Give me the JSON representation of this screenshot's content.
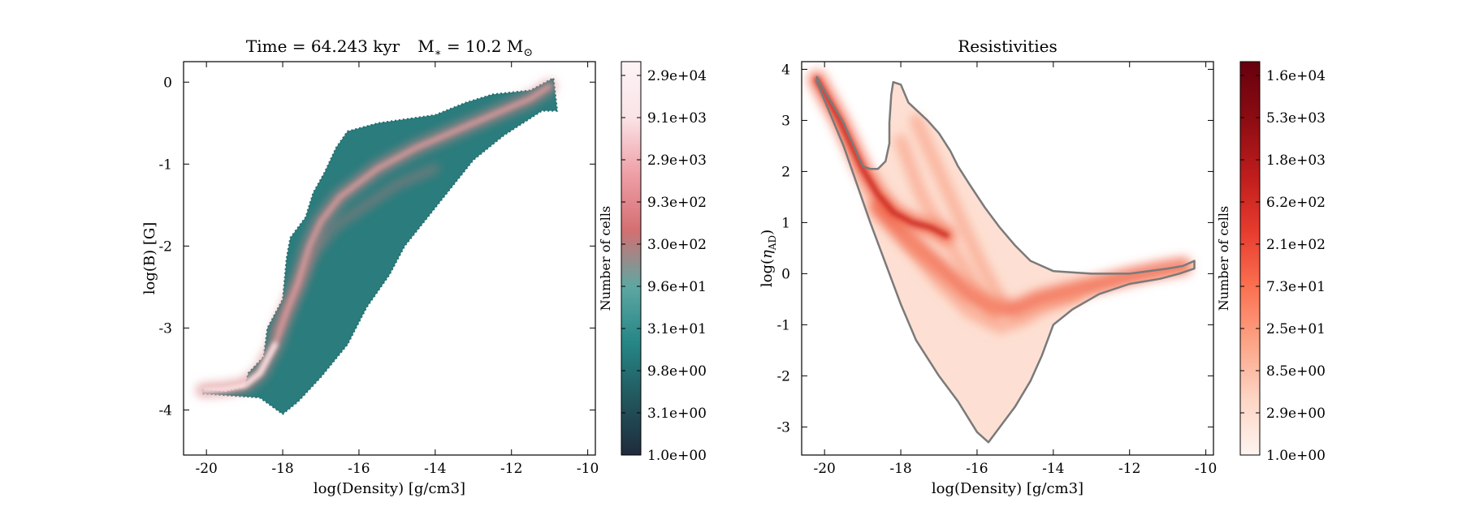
{
  "chart_data": [
    {
      "type": "heatmap",
      "title": "Time = 64.243 kyr    M$_*$ = 10.2 M$_\\odot$",
      "title_parts": {
        "time_label": "Time = 64.243 kyr",
        "mass_prefix": "M",
        "mass_sub": "∗",
        "mass_value": " = 10.2 M",
        "mass_unit_sub": "⊙"
      },
      "xlabel": "log(Density) [g/cm3]",
      "ylabel": "log(B) [G]",
      "xlim": [
        -20.6,
        -9.8
      ],
      "ylim": [
        -4.55,
        0.25
      ],
      "xticks": [
        -20,
        -18,
        -16,
        -14,
        -12,
        -10
      ],
      "yticks": [
        0,
        -1,
        -2,
        -3,
        -4
      ],
      "colormap": [
        "#1f2b3d",
        "#22575d",
        "#268686",
        "#5ea7a2",
        "#d46f72",
        "#ee9fa6",
        "#fae3e6",
        "#fdf4f6"
      ],
      "colorbar": {
        "label": "Number of cells",
        "ticks": [
          "2.9e+04",
          "9.1e+03",
          "2.9e+03",
          "9.3e+02",
          "3.0e+02",
          "9.6e+01",
          "3.1e+01",
          "9.8e+00",
          "3.1e+00",
          "1.0e+00"
        ],
        "scale": "log"
      },
      "outline_polygon": [
        [
          -20.1,
          -3.75
        ],
        [
          -19.5,
          -3.78
        ],
        [
          -19.0,
          -3.72
        ],
        [
          -18.9,
          -3.55
        ],
        [
          -18.5,
          -3.35
        ],
        [
          -18.4,
          -3.0
        ],
        [
          -18.0,
          -2.65
        ],
        [
          -17.9,
          -2.15
        ],
        [
          -17.8,
          -1.9
        ],
        [
          -17.4,
          -1.65
        ],
        [
          -17.2,
          -1.35
        ],
        [
          -16.9,
          -1.1
        ],
        [
          -16.6,
          -0.8
        ],
        [
          -16.3,
          -0.6
        ],
        [
          -15.5,
          -0.5
        ],
        [
          -14.0,
          -0.4
        ],
        [
          -13.2,
          -0.25
        ],
        [
          -12.5,
          -0.15
        ],
        [
          -11.5,
          -0.1
        ],
        [
          -10.9,
          0.05
        ],
        [
          -10.8,
          -0.35
        ],
        [
          -11.2,
          -0.35
        ],
        [
          -12.2,
          -0.65
        ],
        [
          -13.0,
          -0.95
        ],
        [
          -13.6,
          -1.3
        ],
        [
          -14.2,
          -1.65
        ],
        [
          -14.8,
          -2.0
        ],
        [
          -15.2,
          -2.35
        ],
        [
          -15.8,
          -2.75
        ],
        [
          -16.3,
          -3.2
        ],
        [
          -17.0,
          -3.6
        ],
        [
          -17.6,
          -3.9
        ],
        [
          -18.0,
          -4.05
        ],
        [
          -18.6,
          -3.85
        ],
        [
          -19.5,
          -3.82
        ],
        [
          -20.1,
          -3.8
        ]
      ],
      "ridge": [
        [
          -20.1,
          -3.76
        ],
        [
          -19.5,
          -3.74
        ],
        [
          -19.0,
          -3.7
        ],
        [
          -18.6,
          -3.55
        ],
        [
          -18.2,
          -3.2
        ],
        [
          -17.9,
          -2.8
        ],
        [
          -17.6,
          -2.45
        ],
        [
          -17.3,
          -2.0
        ],
        [
          -17.0,
          -1.7
        ],
        [
          -16.5,
          -1.4
        ],
        [
          -15.5,
          -1.05
        ],
        [
          -14.5,
          -0.8
        ],
        [
          -13.5,
          -0.6
        ],
        [
          -12.5,
          -0.4
        ],
        [
          -11.5,
          -0.2
        ],
        [
          -11.0,
          -0.05
        ]
      ],
      "secondary_ridge": [
        [
          -18.2,
          -3.05
        ],
        [
          -17.7,
          -2.6
        ],
        [
          -17.2,
          -2.1
        ],
        [
          -16.6,
          -1.75
        ],
        [
          -15.8,
          -1.5
        ],
        [
          -15.0,
          -1.25
        ],
        [
          -14.0,
          -1.05
        ]
      ]
    },
    {
      "type": "heatmap",
      "title": "Resistivities",
      "xlabel": "log(Density) [g/cm3]",
      "ylabel": "log(η$_{AD}$)",
      "ylabel_parts": {
        "prefix": "log(",
        "symbol": "η",
        "sub": "AD",
        "suffix": ")"
      },
      "xlim": [
        -20.6,
        -9.8
      ],
      "ylim": [
        -3.55,
        4.15
      ],
      "xticks": [
        -20,
        -18,
        -16,
        -14,
        -12,
        -10
      ],
      "yticks": [
        4,
        3,
        2,
        1,
        0,
        -1,
        -2,
        -3
      ],
      "colormap": [
        "#fff5f0",
        "#fdd5c4",
        "#fca486",
        "#fb7050",
        "#e63b2e",
        "#bd1c1c",
        "#8b0c12",
        "#67000d"
      ],
      "colorbar": {
        "label": "Number of cells",
        "ticks": [
          "1.6e+04",
          "5.3e+03",
          "1.8e+03",
          "6.2e+02",
          "2.1e+02",
          "7.3e+01",
          "2.5e+01",
          "8.5e+00",
          "2.9e+00",
          "1.0e+00"
        ],
        "scale": "log"
      },
      "contour_color": "#7a7a7a",
      "outline_polygon": [
        [
          -20.2,
          3.85
        ],
        [
          -20.1,
          3.7
        ],
        [
          -19.5,
          2.95
        ],
        [
          -19.0,
          2.1
        ],
        [
          -18.8,
          2.05
        ],
        [
          -18.6,
          2.05
        ],
        [
          -18.4,
          2.2
        ],
        [
          -18.3,
          2.55
        ],
        [
          -18.3,
          2.95
        ],
        [
          -18.25,
          3.5
        ],
        [
          -18.2,
          3.75
        ],
        [
          -18.0,
          3.7
        ],
        [
          -17.8,
          3.35
        ],
        [
          -17.3,
          3.0
        ],
        [
          -17.0,
          2.75
        ],
        [
          -16.7,
          2.4
        ],
        [
          -16.5,
          2.1
        ],
        [
          -16.2,
          1.75
        ],
        [
          -15.8,
          1.3
        ],
        [
          -15.4,
          0.9
        ],
        [
          -15.0,
          0.55
        ],
        [
          -14.6,
          0.25
        ],
        [
          -14.0,
          0.05
        ],
        [
          -13.0,
          0.0
        ],
        [
          -12.0,
          0.0
        ],
        [
          -11.0,
          0.1
        ],
        [
          -10.6,
          0.15
        ],
        [
          -10.3,
          0.25
        ],
        [
          -10.3,
          0.1
        ],
        [
          -10.7,
          0.0
        ],
        [
          -11.2,
          -0.1
        ],
        [
          -12.0,
          -0.2
        ],
        [
          -12.8,
          -0.4
        ],
        [
          -13.5,
          -0.7
        ],
        [
          -14.0,
          -1.0
        ],
        [
          -14.3,
          -1.6
        ],
        [
          -14.6,
          -2.1
        ],
        [
          -15.0,
          -2.6
        ],
        [
          -15.4,
          -3.0
        ],
        [
          -15.7,
          -3.3
        ],
        [
          -16.0,
          -3.1
        ],
        [
          -16.5,
          -2.5
        ],
        [
          -17.0,
          -2.0
        ],
        [
          -17.6,
          -1.3
        ],
        [
          -18.0,
          -0.6
        ],
        [
          -18.4,
          0.2
        ],
        [
          -18.8,
          1.0
        ],
        [
          -19.5,
          2.5
        ],
        [
          -20.2,
          3.75
        ]
      ],
      "ridges": [
        [
          [
            -20.2,
            3.8
          ],
          [
            -19.6,
            3.0
          ],
          [
            -19.0,
            2.05
          ],
          [
            -18.6,
            1.55
          ],
          [
            -18.2,
            1.2
          ],
          [
            -17.7,
            1.0
          ],
          [
            -17.2,
            0.9
          ],
          [
            -16.8,
            0.75
          ]
        ],
        [
          [
            -18.6,
            1.3
          ],
          [
            -18.0,
            0.8
          ],
          [
            -17.4,
            0.4
          ],
          [
            -16.8,
            0.0
          ],
          [
            -16.2,
            -0.4
          ],
          [
            -15.6,
            -0.65
          ],
          [
            -15.0,
            -0.7
          ],
          [
            -14.4,
            -0.5
          ],
          [
            -13.6,
            -0.35
          ],
          [
            -12.8,
            -0.2
          ],
          [
            -12.0,
            -0.05
          ],
          [
            -11.2,
            0.08
          ],
          [
            -10.6,
            0.15
          ]
        ],
        [
          [
            -17.8,
            0.6
          ],
          [
            -17.0,
            -0.15
          ],
          [
            -16.2,
            -0.75
          ],
          [
            -15.4,
            -1.05
          ],
          [
            -14.8,
            -0.9
          ],
          [
            -14.2,
            -0.65
          ],
          [
            -13.4,
            -0.45
          ]
        ],
        [
          [
            -18.0,
            2.6
          ],
          [
            -17.5,
            1.6
          ],
          [
            -17.0,
            0.9
          ],
          [
            -16.5,
            0.3
          ],
          [
            -16.0,
            -0.3
          ],
          [
            -15.5,
            -0.8
          ]
        ],
        [
          [
            -17.6,
            3.0
          ],
          [
            -17.0,
            2.0
          ],
          [
            -16.4,
            1.0
          ],
          [
            -15.9,
            0.2
          ],
          [
            -15.4,
            -0.5
          ]
        ]
      ]
    }
  ]
}
